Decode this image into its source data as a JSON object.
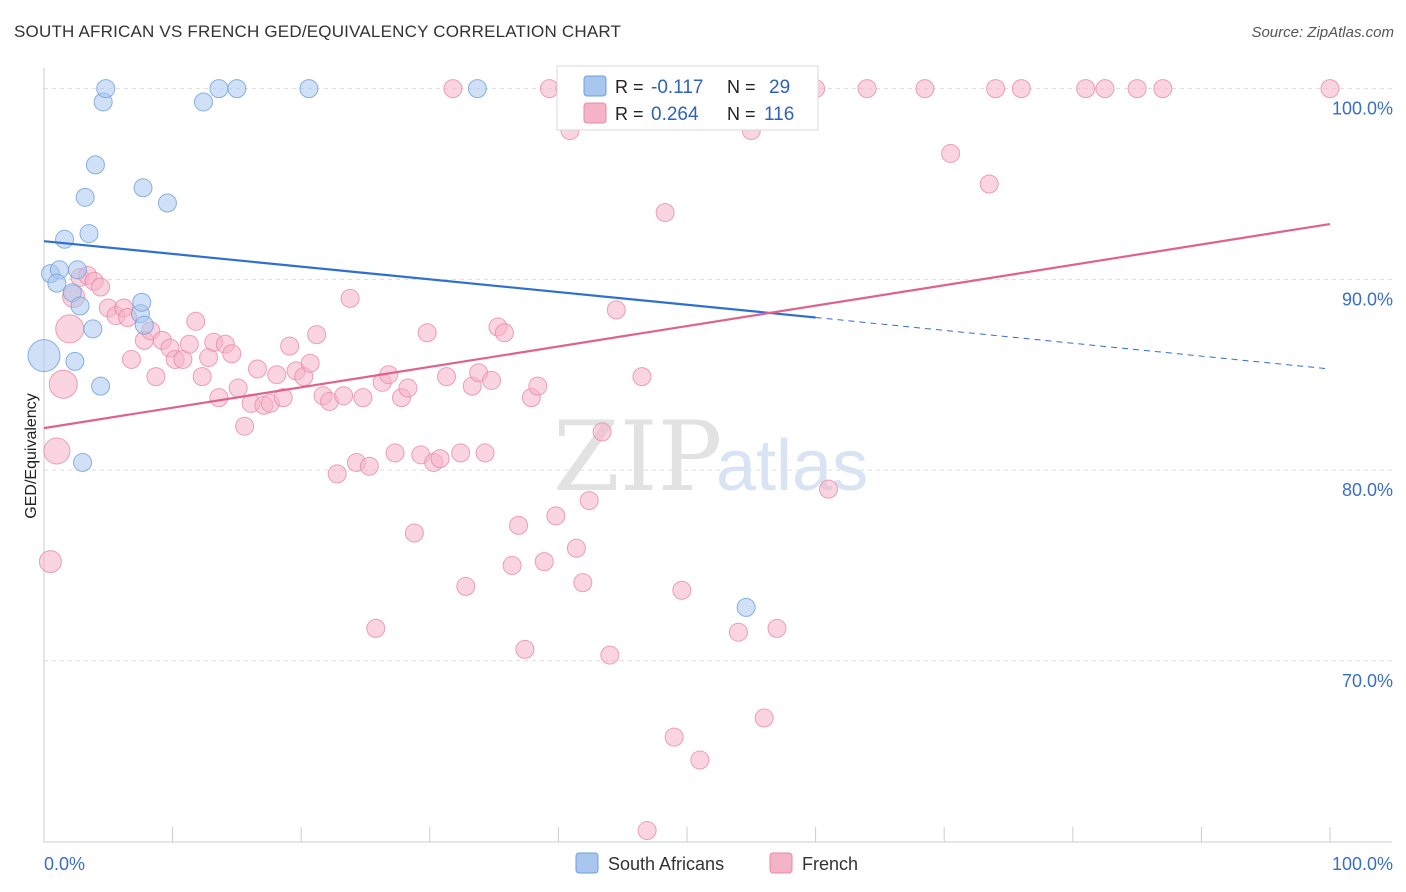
{
  "title": "SOUTH AFRICAN VS FRENCH GED/EQUIVALENCY CORRELATION CHART",
  "source": "Source: ZipAtlas.com",
  "watermark": {
    "zip": "ZIP",
    "atlas": "atlas"
  },
  "legend": {
    "rows": [
      {
        "r_label": "R = ",
        "r_value": "-0.117",
        "n_label": "N = ",
        "n_value": "29",
        "color": "#a9c6ee"
      },
      {
        "r_label": "R = ",
        "r_value": "0.264",
        "n_label": "N = ",
        "n_value": "116",
        "color": "#f5b3c8"
      }
    ]
  },
  "bottom_legend": [
    {
      "label": "South Africans",
      "color": "#a9c6ee"
    },
    {
      "label": "French",
      "color": "#f5b3c8"
    }
  ],
  "chart_data": {
    "type": "scatter",
    "title": "SOUTH AFRICAN VS FRENCH GED/EQUIVALENCY CORRELATION CHART",
    "xlabel": "",
    "ylabel": "GED/Equivalency",
    "xlim": [
      0,
      100
    ],
    "ylim": [
      60.5,
      101.5
    ],
    "x_tick_labels": [
      "0.0%",
      "100.0%"
    ],
    "y_ticks": [
      {
        "value": 100,
        "label": "100.0%"
      },
      {
        "value": 90,
        "label": "90.0%"
      },
      {
        "value": 80,
        "label": "80.0%"
      },
      {
        "value": 70,
        "label": "70.0%"
      }
    ],
    "grid": true,
    "legend_position": "top-center",
    "series": [
      {
        "name": "South Africans",
        "color": "#a9c6ee",
        "stroke": "#6f9fdc",
        "trend": {
          "x": [
            0,
            60
          ],
          "y": [
            92.0,
            88.0
          ],
          "dashed_to_x": 100,
          "dashed_end_y": 85.3,
          "color": "#2f6fcf"
        },
        "points": [
          [
            0.0,
            86.0,
            16
          ],
          [
            0.5,
            90.3,
            9
          ],
          [
            1.2,
            90.5,
            9
          ],
          [
            1.0,
            89.8,
            9
          ],
          [
            1.6,
            92.1,
            9
          ],
          [
            2.2,
            89.3,
            9
          ],
          [
            2.4,
            85.7,
            9
          ],
          [
            2.6,
            90.5,
            9
          ],
          [
            2.8,
            88.6,
            9
          ],
          [
            3.0,
            80.4,
            9
          ],
          [
            3.2,
            94.3,
            9
          ],
          [
            3.5,
            92.4,
            9
          ],
          [
            3.8,
            87.4,
            9
          ],
          [
            4.0,
            96.0,
            9
          ],
          [
            4.4,
            84.4,
            9
          ],
          [
            4.6,
            99.3,
            9
          ],
          [
            4.8,
            100.0,
            9
          ],
          [
            7.5,
            88.2,
            9
          ],
          [
            7.6,
            88.8,
            9
          ],
          [
            7.7,
            94.8,
            9
          ],
          [
            7.8,
            87.6,
            9
          ],
          [
            9.6,
            94.0,
            9
          ],
          [
            12.4,
            99.3,
            9
          ],
          [
            13.6,
            100.0,
            9
          ],
          [
            15.0,
            100.0,
            9
          ],
          [
            20.6,
            100.0,
            9
          ],
          [
            33.7,
            100.0,
            9
          ],
          [
            47.0,
            100.0,
            9
          ],
          [
            54.6,
            72.8,
            9
          ]
        ]
      },
      {
        "name": "French",
        "color": "#f5b3c8",
        "stroke": "#e88aa8",
        "trend": {
          "x": [
            0,
            100
          ],
          "y": [
            82.2,
            92.9
          ],
          "color": "#e0628c"
        },
        "points": [
          [
            0.5,
            75.2,
            11
          ],
          [
            1.0,
            81.0,
            13
          ],
          [
            1.5,
            84.5,
            14
          ],
          [
            2.0,
            87.4,
            14
          ],
          [
            2.3,
            89.1,
            11
          ],
          [
            2.8,
            90.1,
            9
          ],
          [
            3.4,
            90.2,
            9
          ],
          [
            3.9,
            89.9,
            9
          ],
          [
            4.4,
            89.6,
            9
          ],
          [
            5.0,
            88.5,
            9
          ],
          [
            5.6,
            88.1,
            9
          ],
          [
            6.2,
            88.5,
            9
          ],
          [
            6.5,
            88.0,
            9
          ],
          [
            6.8,
            85.8,
            9
          ],
          [
            7.8,
            86.8,
            9
          ],
          [
            8.3,
            87.3,
            9
          ],
          [
            8.7,
            84.9,
            9
          ],
          [
            9.2,
            86.8,
            9
          ],
          [
            9.8,
            86.4,
            9
          ],
          [
            10.2,
            85.8,
            9
          ],
          [
            10.8,
            85.8,
            9
          ],
          [
            11.3,
            86.6,
            9
          ],
          [
            11.8,
            87.8,
            9
          ],
          [
            12.3,
            84.9,
            9
          ],
          [
            12.8,
            85.9,
            9
          ],
          [
            13.2,
            86.7,
            9
          ],
          [
            13.6,
            83.8,
            9
          ],
          [
            14.1,
            86.6,
            9
          ],
          [
            14.6,
            86.1,
            9
          ],
          [
            15.1,
            84.3,
            9
          ],
          [
            15.6,
            82.3,
            9
          ],
          [
            16.1,
            83.5,
            9
          ],
          [
            16.6,
            85.3,
            9
          ],
          [
            17.1,
            83.4,
            9
          ],
          [
            17.6,
            83.5,
            9
          ],
          [
            18.1,
            85.0,
            9
          ],
          [
            18.6,
            83.8,
            9
          ],
          [
            19.1,
            86.5,
            9
          ],
          [
            19.6,
            85.2,
            9
          ],
          [
            20.2,
            84.9,
            9
          ],
          [
            20.7,
            85.6,
            9
          ],
          [
            21.2,
            87.1,
            9
          ],
          [
            21.7,
            83.9,
            9
          ],
          [
            22.2,
            83.6,
            9
          ],
          [
            22.8,
            79.8,
            9
          ],
          [
            23.3,
            83.9,
            9
          ],
          [
            23.8,
            89.0,
            9
          ],
          [
            24.3,
            80.4,
            9
          ],
          [
            24.8,
            83.8,
            9
          ],
          [
            25.3,
            80.2,
            9
          ],
          [
            25.8,
            71.7,
            9
          ],
          [
            26.3,
            84.6,
            9
          ],
          [
            26.8,
            85.0,
            9
          ],
          [
            27.3,
            80.9,
            9
          ],
          [
            27.8,
            83.8,
            9
          ],
          [
            28.3,
            84.3,
            9
          ],
          [
            28.8,
            76.7,
            9
          ],
          [
            29.3,
            80.8,
            9
          ],
          [
            29.8,
            87.2,
            9
          ],
          [
            30.3,
            80.4,
            9
          ],
          [
            30.8,
            80.6,
            9
          ],
          [
            31.3,
            84.9,
            9
          ],
          [
            31.8,
            100.0,
            9
          ],
          [
            32.4,
            80.9,
            9
          ],
          [
            32.8,
            73.9,
            9
          ],
          [
            33.3,
            84.4,
            9
          ],
          [
            33.8,
            85.1,
            9
          ],
          [
            34.3,
            80.9,
            9
          ],
          [
            34.8,
            84.7,
            9
          ],
          [
            35.3,
            87.5,
            9
          ],
          [
            35.8,
            87.2,
            9
          ],
          [
            36.4,
            75.0,
            9
          ],
          [
            36.9,
            77.1,
            9
          ],
          [
            37.4,
            70.6,
            9
          ],
          [
            37.9,
            83.8,
            9
          ],
          [
            38.4,
            84.4,
            9
          ],
          [
            38.9,
            75.2,
            9
          ],
          [
            39.3,
            100.0,
            9
          ],
          [
            39.8,
            77.6,
            9
          ],
          [
            40.5,
            100.0,
            9
          ],
          [
            40.9,
            97.8,
            9
          ],
          [
            41.4,
            75.9,
            9
          ],
          [
            41.9,
            74.1,
            9
          ],
          [
            42.4,
            78.4,
            9
          ],
          [
            43.0,
            100.0,
            9
          ],
          [
            43.4,
            82.0,
            9
          ],
          [
            44.0,
            70.3,
            9
          ],
          [
            44.5,
            88.4,
            9
          ],
          [
            45.5,
            100.0,
            9
          ],
          [
            46.5,
            84.9,
            9
          ],
          [
            46.9,
            61.1,
            9
          ],
          [
            47.6,
            100.0,
            9
          ],
          [
            48.3,
            93.5,
            9
          ],
          [
            49.0,
            66.0,
            9
          ],
          [
            49.6,
            73.7,
            9
          ],
          [
            50.5,
            100.0,
            9
          ],
          [
            51.0,
            64.8,
            9
          ],
          [
            53.0,
            100.0,
            9
          ],
          [
            54.0,
            71.5,
            9
          ],
          [
            55.0,
            97.8,
            9
          ],
          [
            56.0,
            67.0,
            9
          ],
          [
            57.0,
            71.7,
            9
          ],
          [
            58.5,
            100.0,
            9
          ],
          [
            60.0,
            100.0,
            9
          ],
          [
            61.0,
            79.0,
            9
          ],
          [
            64.0,
            100.0,
            9
          ],
          [
            68.5,
            100.0,
            9
          ],
          [
            70.5,
            96.6,
            9
          ],
          [
            74.0,
            100.0,
            9
          ],
          [
            73.5,
            95.0,
            9
          ],
          [
            76.0,
            100.0,
            9
          ],
          [
            81.0,
            100.0,
            9
          ],
          [
            82.5,
            100.0,
            9
          ],
          [
            85.0,
            100.0,
            9
          ],
          [
            87.0,
            100.0,
            9
          ],
          [
            100.0,
            100.0,
            9
          ]
        ]
      }
    ]
  }
}
